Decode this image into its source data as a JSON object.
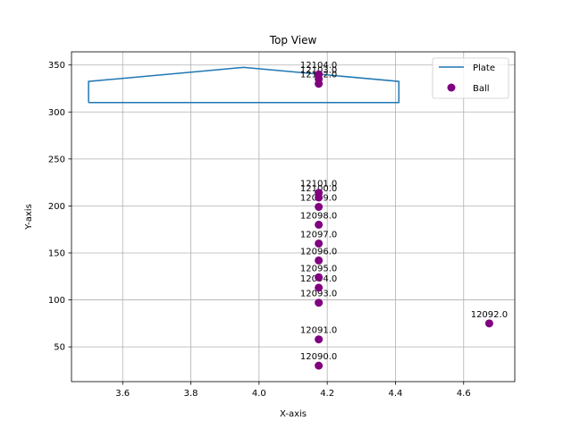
{
  "chart_data": {
    "type": "scatter",
    "title": "Top View",
    "xlabel": "X-axis",
    "ylabel": "Y-axis",
    "xlim": [
      3.45,
      4.75
    ],
    "ylim": [
      13,
      364
    ],
    "xticks": [
      3.6,
      3.8,
      4.0,
      4.2,
      4.4,
      4.6
    ],
    "xtick_labels": [
      "3.6",
      "3.8",
      "4.0",
      "4.2",
      "4.4",
      "4.6"
    ],
    "yticks": [
      50,
      100,
      150,
      200,
      250,
      300,
      350
    ],
    "ytick_labels": [
      "50",
      "100",
      "150",
      "200",
      "250",
      "300",
      "350"
    ],
    "grid": true,
    "legend": {
      "placement": "top-right",
      "entries": [
        "Plate",
        "Ball"
      ]
    },
    "plate": {
      "name": "Plate",
      "color": "#1f77b4",
      "x": [
        3.5,
        3.5,
        3.955,
        4.41,
        4.41,
        3.5
      ],
      "y": [
        310,
        332.5,
        347.5,
        332.5,
        310,
        310
      ]
    },
    "ball": {
      "name": "Ball",
      "color": "#800080",
      "points": [
        {
          "x": 4.175,
          "y": 30,
          "label": "12090.0"
        },
        {
          "x": 4.175,
          "y": 58,
          "label": "12091.0"
        },
        {
          "x": 4.675,
          "y": 75,
          "label": "12092.0"
        },
        {
          "x": 4.175,
          "y": 97,
          "label": "12093.0"
        },
        {
          "x": 4.175,
          "y": 113,
          "label": "12094.0"
        },
        {
          "x": 4.175,
          "y": 124,
          "label": "12095.0"
        },
        {
          "x": 4.175,
          "y": 142,
          "label": "12096.0"
        },
        {
          "x": 4.175,
          "y": 160,
          "label": "12097.0"
        },
        {
          "x": 4.175,
          "y": 180,
          "label": "12098.0"
        },
        {
          "x": 4.175,
          "y": 199,
          "label": "12099.0"
        },
        {
          "x": 4.175,
          "y": 209,
          "label": "12100.0"
        },
        {
          "x": 4.175,
          "y": 214,
          "label": "12101.0"
        },
        {
          "x": 4.175,
          "y": 330,
          "label": "12102.0"
        },
        {
          "x": 4.175,
          "y": 335,
          "label": "12103.0"
        },
        {
          "x": 4.175,
          "y": 340,
          "label": "12104.0"
        }
      ]
    }
  }
}
